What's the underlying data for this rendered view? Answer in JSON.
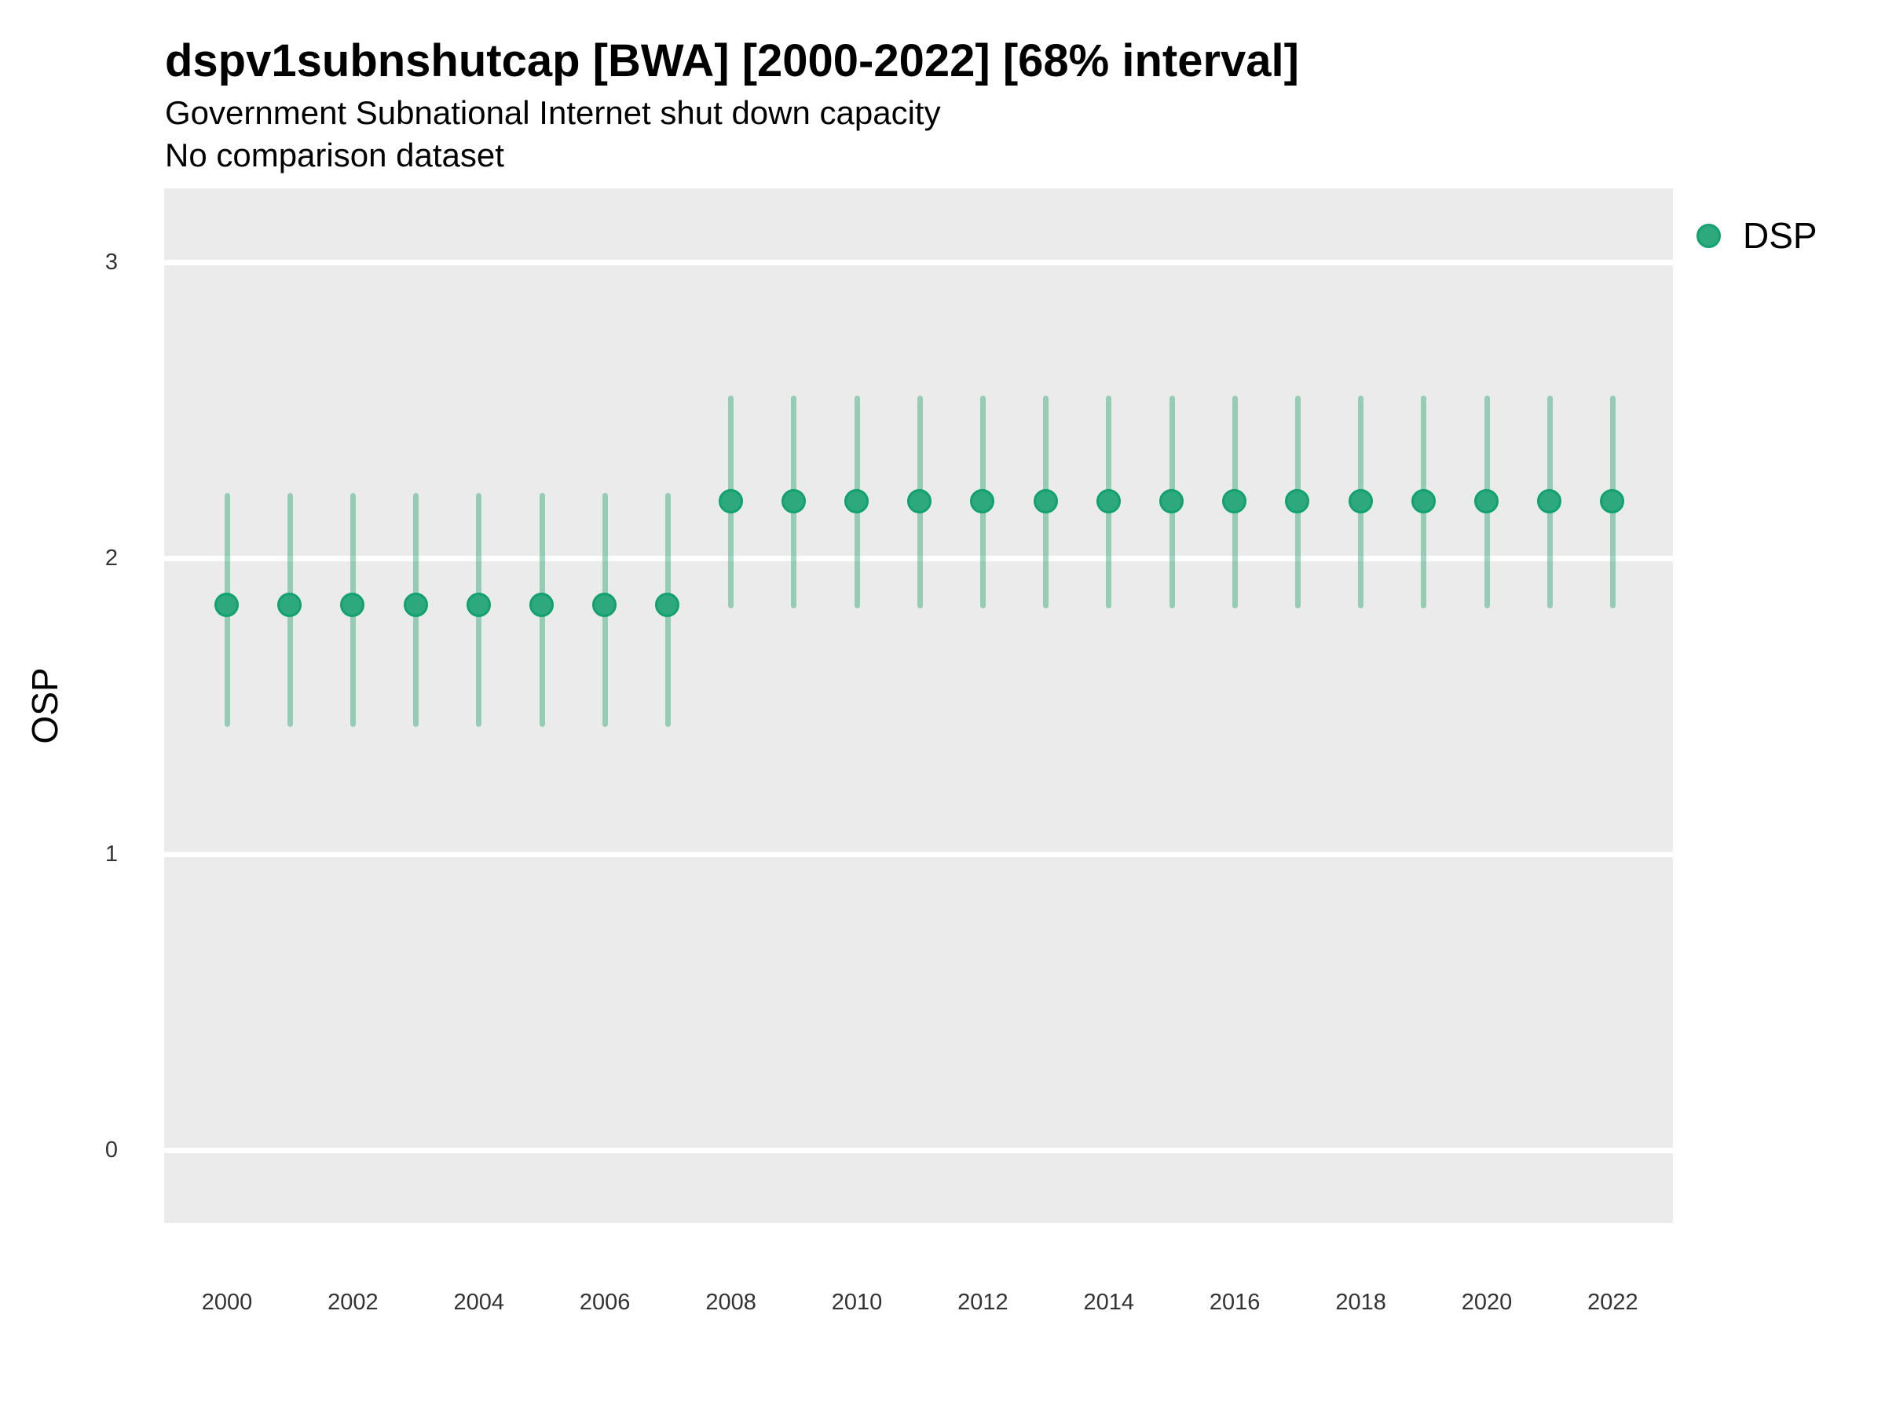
{
  "header": {
    "title": "dspv1subnshutcap [BWA] [2000-2022] [68% interval]",
    "subtitle": "Government Subnational Internet shut down capacity",
    "note": "No comparison dataset"
  },
  "axes": {
    "y_label": "OSP",
    "x_label": ""
  },
  "legend": {
    "position": "right",
    "items": [
      {
        "label": "DSP",
        "marker": "circle-icon",
        "color": "#2EA87D",
        "border_color": "#12A170"
      }
    ]
  },
  "colors": {
    "point_fill": "#2EA87D",
    "point_border": "#12A170",
    "interval": "rgba(42, 167, 117, 0.45)",
    "panel_background": "#EBEBEB",
    "gridline": "#FFFFFF",
    "tick_text": "#333333",
    "title_text": "#000000"
  },
  "chart_data": {
    "type": "scatter",
    "subtype": "pointrange",
    "title": "dspv1subnshutcap [BWA] [2000-2022] [68% interval]",
    "subtitle": "Government Subnational Internet shut down capacity",
    "note": "No comparison dataset",
    "xlabel": "",
    "ylabel": "OSP",
    "interval_level": "68%",
    "grid": "horizontal major gridlines only, white on gray panel",
    "legend_position": "right",
    "x": [
      2000,
      2001,
      2002,
      2003,
      2004,
      2005,
      2006,
      2007,
      2008,
      2009,
      2010,
      2011,
      2012,
      2013,
      2014,
      2015,
      2016,
      2017,
      2018,
      2019,
      2020,
      2021,
      2022
    ],
    "series": [
      {
        "name": "DSP",
        "estimates": [
          1.84,
          1.84,
          1.84,
          1.84,
          1.84,
          1.84,
          1.84,
          1.84,
          2.19,
          2.19,
          2.19,
          2.19,
          2.19,
          2.19,
          2.19,
          2.19,
          2.19,
          2.19,
          2.19,
          2.19,
          2.19,
          2.19,
          2.19
        ],
        "lower": [
          1.43,
          1.43,
          1.43,
          1.43,
          1.43,
          1.43,
          1.43,
          1.43,
          1.83,
          1.83,
          1.83,
          1.83,
          1.83,
          1.83,
          1.83,
          1.83,
          1.83,
          1.83,
          1.83,
          1.83,
          1.83,
          1.83,
          1.83
        ],
        "upper": [
          2.22,
          2.22,
          2.22,
          2.22,
          2.22,
          2.22,
          2.22,
          2.22,
          2.55,
          2.55,
          2.55,
          2.55,
          2.55,
          2.55,
          2.55,
          2.55,
          2.55,
          2.55,
          2.55,
          2.55,
          2.55,
          2.55,
          2.55
        ]
      }
    ],
    "xticks": [
      2000,
      2002,
      2004,
      2006,
      2008,
      2010,
      2012,
      2014,
      2016,
      2018,
      2020,
      2022
    ],
    "yticks": [
      0,
      1,
      2,
      3
    ],
    "ylim": [
      -0.25,
      3.25
    ],
    "xlim": [
      1999.0,
      2022.95
    ]
  }
}
